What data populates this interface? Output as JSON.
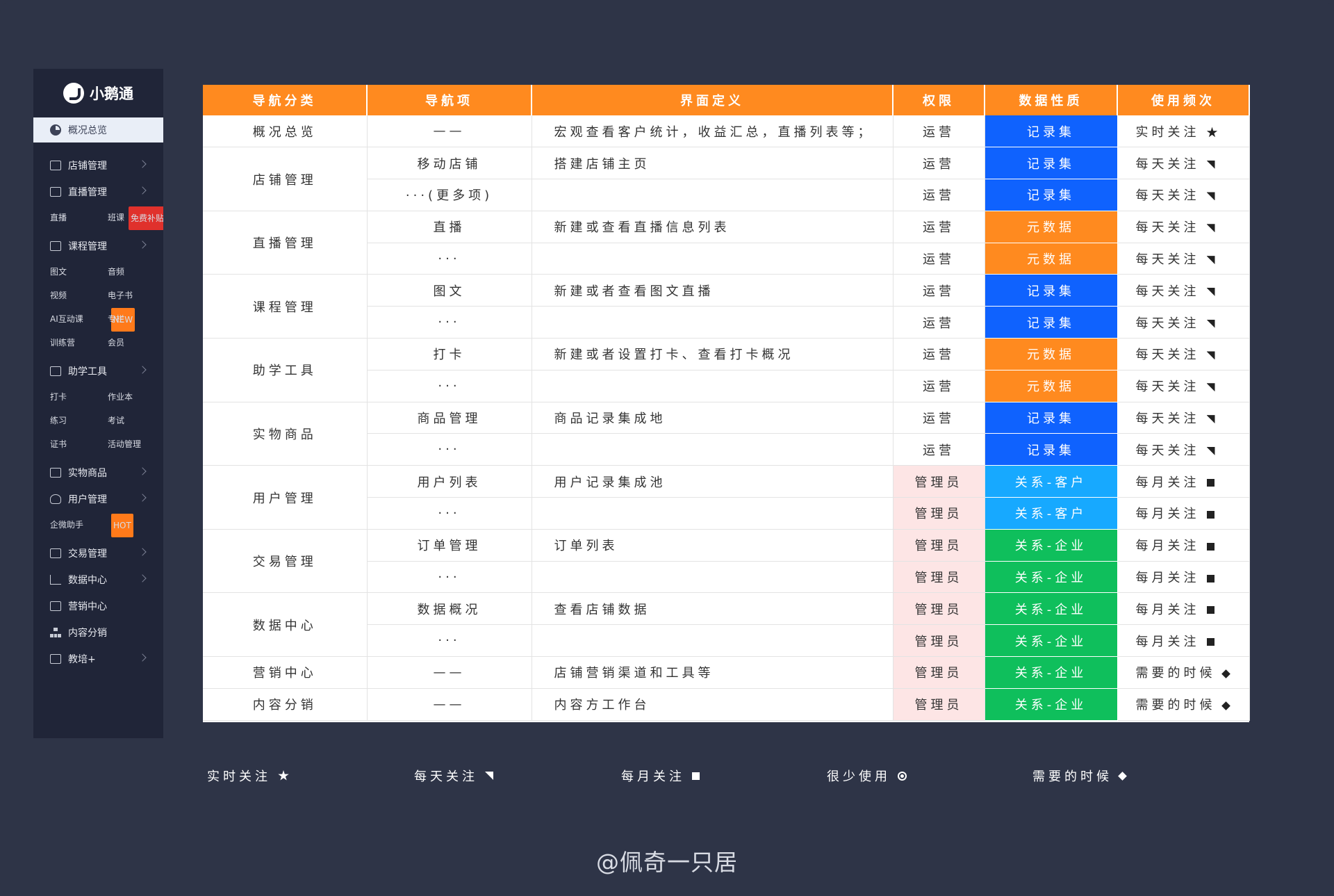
{
  "app": {
    "brand": "小鹅通",
    "active_item": "概况总览"
  },
  "sidebar": {
    "sections": [
      {
        "label": "店铺管理",
        "icon": "store-icon",
        "items": []
      },
      {
        "label": "直播管理",
        "icon": "video-camera-icon",
        "items": [
          {
            "label": "直播"
          },
          {
            "label": "班课",
            "tag": "免费补贴"
          }
        ]
      },
      {
        "label": "课程管理",
        "icon": "document-icon",
        "items": [
          {
            "label": "图文"
          },
          {
            "label": "音频"
          },
          {
            "label": "视频"
          },
          {
            "label": "电子书"
          },
          {
            "label": "AI互动课",
            "tag": "NEW"
          },
          {
            "label": "专栏"
          },
          {
            "label": "训练营"
          },
          {
            "label": "会员"
          }
        ]
      },
      {
        "label": "助学工具",
        "icon": "briefcase-icon",
        "items": [
          {
            "label": "打卡"
          },
          {
            "label": "作业本"
          },
          {
            "label": "练习"
          },
          {
            "label": "考试"
          },
          {
            "label": "证书"
          },
          {
            "label": "活动管理"
          }
        ]
      },
      {
        "label": "实物商品",
        "icon": "bag-icon",
        "items": []
      },
      {
        "label": "用户管理",
        "icon": "user-icon",
        "items": [
          {
            "label": "企微助手",
            "tag": "HOT"
          }
        ]
      },
      {
        "label": "交易管理",
        "icon": "card-icon",
        "items": []
      },
      {
        "label": "数据中心",
        "icon": "line-chart-icon",
        "items": []
      },
      {
        "label": "营销中心",
        "icon": "megaphone-icon",
        "items": [],
        "no_chevron": true
      },
      {
        "label": "内容分销",
        "icon": "tree-icon",
        "items": [],
        "no_chevron": true
      },
      {
        "label": "教培+",
        "icon": "book-icon",
        "items": []
      }
    ]
  },
  "table": {
    "headers": [
      "导航分类",
      "导航项",
      "界面定义",
      "权限",
      "数据性质",
      "使用频次"
    ],
    "groups": [
      {
        "category": "概况总览",
        "rows": [
          {
            "item": "——",
            "def": "宏观查看客户统计，收益汇总，直播列表等；",
            "perm": "运营",
            "nature": "记录集",
            "color": "blue",
            "freq": "实时关注",
            "sym": "star"
          }
        ]
      },
      {
        "category": "店铺管理",
        "rows": [
          {
            "item": "移动店铺",
            "def": "搭建店铺主页",
            "perm": "运营",
            "nature": "记录集",
            "color": "blue",
            "freq": "每天关注",
            "sym": "tri"
          },
          {
            "item": "···(更多项)",
            "def": "",
            "perm": "运营",
            "nature": "记录集",
            "color": "blue",
            "freq": "每天关注",
            "sym": "tri"
          }
        ]
      },
      {
        "category": "直播管理",
        "rows": [
          {
            "item": "直播",
            "def": "新建或查看直播信息列表",
            "perm": "运营",
            "nature": "元数据",
            "color": "orange",
            "freq": "每天关注",
            "sym": "tri"
          },
          {
            "item": "···",
            "def": "",
            "perm": "运营",
            "nature": "元数据",
            "color": "orange",
            "freq": "每天关注",
            "sym": "tri"
          }
        ]
      },
      {
        "category": "课程管理",
        "rows": [
          {
            "item": "图文",
            "def": "新建或者查看图文直播",
            "perm": "运营",
            "nature": "记录集",
            "color": "blue",
            "freq": "每天关注",
            "sym": "tri"
          },
          {
            "item": "···",
            "def": "",
            "perm": "运营",
            "nature": "记录集",
            "color": "blue",
            "freq": "每天关注",
            "sym": "tri"
          }
        ]
      },
      {
        "category": "助学工具",
        "rows": [
          {
            "item": "打卡",
            "def": "新建或者设置打卡、查看打卡概况",
            "perm": "运营",
            "nature": "元数据",
            "color": "orange",
            "freq": "每天关注",
            "sym": "tri"
          },
          {
            "item": "···",
            "def": "",
            "perm": "运营",
            "nature": "元数据",
            "color": "orange",
            "freq": "每天关注",
            "sym": "tri"
          }
        ]
      },
      {
        "category": "实物商品",
        "rows": [
          {
            "item": "商品管理",
            "def": "商品记录集成地",
            "perm": "运营",
            "nature": "记录集",
            "color": "blue",
            "freq": "每天关注",
            "sym": "tri"
          },
          {
            "item": "···",
            "def": "",
            "perm": "运营",
            "nature": "记录集",
            "color": "blue",
            "freq": "每天关注",
            "sym": "tri"
          }
        ]
      },
      {
        "category": "用户管理",
        "rows": [
          {
            "item": "用户列表",
            "def": "用户记录集成池",
            "perm": "管理员",
            "nature": "关系-客户",
            "color": "cyan",
            "freq": "每月关注",
            "sym": "sq"
          },
          {
            "item": "···",
            "def": "",
            "perm": "管理员",
            "nature": "关系-客户",
            "color": "cyan",
            "freq": "每月关注",
            "sym": "sq"
          }
        ]
      },
      {
        "category": "交易管理",
        "rows": [
          {
            "item": "订单管理",
            "def": "订单列表",
            "perm": "管理员",
            "nature": "关系-企业",
            "color": "green",
            "freq": "每月关注",
            "sym": "sq"
          },
          {
            "item": "···",
            "def": "",
            "perm": "管理员",
            "nature": "关系-企业",
            "color": "green",
            "freq": "每月关注",
            "sym": "sq"
          }
        ]
      },
      {
        "category": "数据中心",
        "rows": [
          {
            "item": "数据概况",
            "def": "查看店铺数据",
            "perm": "管理员",
            "nature": "关系-企业",
            "color": "green",
            "freq": "每月关注",
            "sym": "sq"
          },
          {
            "item": "···",
            "def": "",
            "perm": "管理员",
            "nature": "关系-企业",
            "color": "green",
            "freq": "每月关注",
            "sym": "sq"
          }
        ]
      },
      {
        "category": "营销中心",
        "rows": [
          {
            "item": "——",
            "def": "店铺营销渠道和工具等",
            "perm": "管理员",
            "nature": "关系-企业",
            "color": "green",
            "freq": "需要的时候",
            "sym": "dia"
          }
        ]
      },
      {
        "category": "内容分销",
        "rows": [
          {
            "item": "——",
            "def": "内容方工作台",
            "perm": "管理员",
            "nature": "关系-企业",
            "color": "green",
            "freq": "需要的时候",
            "sym": "dia"
          }
        ]
      }
    ]
  },
  "legend": [
    {
      "label": "实时关注",
      "sym": "star"
    },
    {
      "label": "每天关注",
      "sym": "tri"
    },
    {
      "label": "每月关注",
      "sym": "sq"
    },
    {
      "label": "很少使用",
      "sym": "circ"
    },
    {
      "label": "需要的时候",
      "sym": "dia"
    }
  ],
  "watermark": "@佩奇一只居",
  "colors": {
    "header": "#ff8a1f",
    "record_blue": "#0f62fe",
    "meta_orange": "#ff8a1f",
    "customer_cyan": "#17a9ff",
    "enterprise_green": "#0fbf5c",
    "admin_pink": "#fde5e5",
    "background": "#2e3447",
    "sidebar": "#202538"
  }
}
